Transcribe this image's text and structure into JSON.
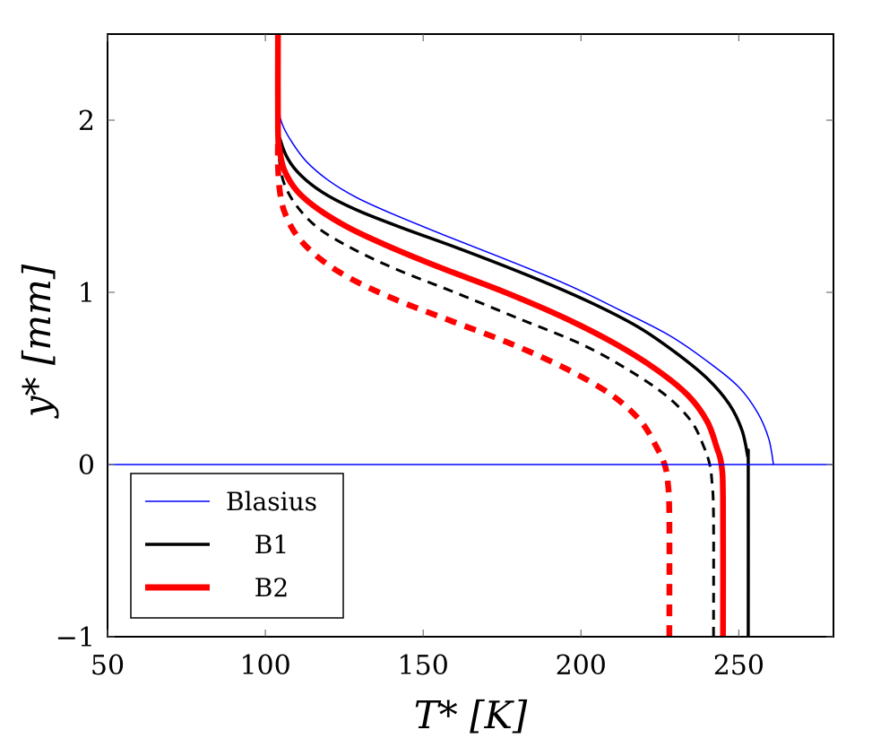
{
  "chart_data": {
    "type": "line",
    "xlabel": "T* [K]",
    "ylabel": "y* [mm]",
    "xlim": [
      50,
      280
    ],
    "ylim": [
      -1,
      2.5
    ],
    "x_ticks": [
      50,
      100,
      150,
      200,
      250
    ],
    "y_ticks": [
      -1,
      0,
      1,
      2
    ],
    "y_tick_labels": [
      "−1",
      "0",
      "1",
      "2"
    ],
    "grid": false,
    "legend_position": "bottom-left",
    "legend": [
      {
        "label": "Blasius",
        "color": "#0000ff",
        "style": "solid-thin"
      },
      {
        "label": "B1",
        "color": "#000000",
        "style": "solid"
      },
      {
        "label": "B2",
        "color": "#ff0000",
        "style": "solid-thick"
      }
    ],
    "series": [
      {
        "key": "blasius",
        "color": "#0000ff",
        "style": "solid-thin",
        "points": [
          [
            261,
            0
          ],
          [
            259.5,
            0.15
          ],
          [
            256,
            0.3
          ],
          [
            250,
            0.45
          ],
          [
            240,
            0.6
          ],
          [
            228,
            0.75
          ],
          [
            212,
            0.9
          ],
          [
            195,
            1.05
          ],
          [
            175,
            1.2
          ],
          [
            157,
            1.33
          ],
          [
            141,
            1.45
          ],
          [
            129,
            1.55
          ],
          [
            120,
            1.65
          ],
          [
            113,
            1.76
          ],
          [
            108.5,
            1.87
          ],
          [
            105.5,
            1.97
          ],
          [
            104.5,
            2.05
          ],
          [
            104,
            2.2
          ],
          [
            104,
            2.5
          ]
        ]
      },
      {
        "key": "b1-solid",
        "color": "#000000",
        "style": "solid",
        "points": [
          [
            253,
            -1
          ],
          [
            253,
            0
          ],
          [
            252.8,
            0.05
          ],
          [
            251,
            0.2
          ],
          [
            247,
            0.35
          ],
          [
            240,
            0.5
          ],
          [
            230,
            0.65
          ],
          [
            218,
            0.8
          ],
          [
            202,
            0.95
          ],
          [
            183,
            1.1
          ],
          [
            162,
            1.25
          ],
          [
            144,
            1.37
          ],
          [
            130,
            1.47
          ],
          [
            120,
            1.56
          ],
          [
            113,
            1.65
          ],
          [
            108,
            1.75
          ],
          [
            105,
            1.87
          ],
          [
            104,
            2.0
          ],
          [
            104,
            2.5
          ]
        ]
      },
      {
        "key": "b1-dashed",
        "color": "#000000",
        "style": "dashed",
        "points": [
          [
            242,
            -1
          ],
          [
            242,
            -0.3
          ],
          [
            241.5,
            -0.1
          ],
          [
            240.8,
            0
          ],
          [
            239,
            0.1
          ],
          [
            235,
            0.25
          ],
          [
            227,
            0.4
          ],
          [
            215,
            0.55
          ],
          [
            200,
            0.7
          ],
          [
            180,
            0.85
          ],
          [
            160,
            1.0
          ],
          [
            142,
            1.13
          ],
          [
            128,
            1.25
          ],
          [
            117,
            1.37
          ],
          [
            110,
            1.5
          ],
          [
            106,
            1.63
          ],
          [
            104.5,
            1.76
          ],
          [
            104,
            1.9
          ],
          [
            104,
            2.2
          ]
        ]
      },
      {
        "key": "b2-solid",
        "color": "#ff0000",
        "style": "solid-thick",
        "points": [
          [
            245,
            -1
          ],
          [
            245,
            -0.2
          ],
          [
            244.5,
            0
          ],
          [
            243,
            0.1
          ],
          [
            240,
            0.25
          ],
          [
            234,
            0.4
          ],
          [
            224,
            0.55
          ],
          [
            211,
            0.7
          ],
          [
            195,
            0.85
          ],
          [
            176,
            1.0
          ],
          [
            156,
            1.14
          ],
          [
            140,
            1.26
          ],
          [
            127,
            1.37
          ],
          [
            117,
            1.48
          ],
          [
            110,
            1.59
          ],
          [
            106,
            1.71
          ],
          [
            104.5,
            1.83
          ],
          [
            104,
            1.95
          ],
          [
            104,
            2.5
          ]
        ]
      },
      {
        "key": "b2-dashed",
        "color": "#ff0000",
        "style": "dashed-thick",
        "points": [
          [
            228,
            -1
          ],
          [
            228,
            -0.3
          ],
          [
            227.5,
            -0.1
          ],
          [
            226.5,
            0
          ],
          [
            224,
            0.1
          ],
          [
            219,
            0.25
          ],
          [
            210,
            0.4
          ],
          [
            196,
            0.55
          ],
          [
            178,
            0.7
          ],
          [
            158,
            0.84
          ],
          [
            141,
            0.96
          ],
          [
            127,
            1.08
          ],
          [
            117,
            1.2
          ],
          [
            110,
            1.33
          ],
          [
            106,
            1.47
          ],
          [
            104.5,
            1.6
          ],
          [
            104,
            1.74
          ],
          [
            104,
            1.9
          ]
        ]
      },
      {
        "key": "zero-line",
        "color": "#0000ff",
        "style": "solid-thin",
        "points": [
          [
            50,
            0
          ],
          [
            280,
            0
          ]
        ]
      }
    ]
  }
}
